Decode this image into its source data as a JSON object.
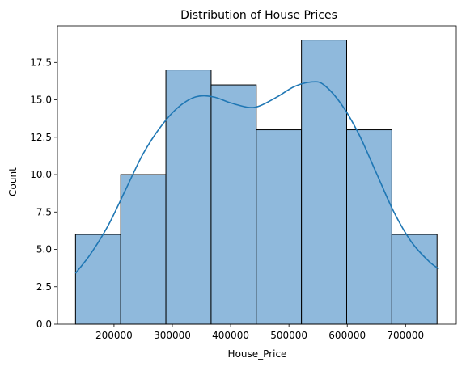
{
  "chart_data": {
    "type": "histogram",
    "title": "Distribution of House Prices",
    "xlabel": "House_Price",
    "ylabel": "Count",
    "xlim": [
      103000,
      787000
    ],
    "ylim": [
      0,
      19.95
    ],
    "x_ticks": [
      200000,
      300000,
      400000,
      500000,
      600000,
      700000
    ],
    "x_tick_labels": [
      "200000",
      "300000",
      "400000",
      "500000",
      "600000",
      "700000"
    ],
    "y_ticks": [
      0,
      2.5,
      5,
      7.5,
      10,
      12.5,
      15,
      17.5
    ],
    "y_tick_labels": [
      "0.0",
      "2.5",
      "5.0",
      "7.5",
      "10.0",
      "12.5",
      "15.0",
      "17.5"
    ],
    "bins": [
      {
        "x0": 134000,
        "x1": 211500,
        "count": 6
      },
      {
        "x0": 211500,
        "x1": 289000,
        "count": 10
      },
      {
        "x0": 289000,
        "x1": 366500,
        "count": 17
      },
      {
        "x0": 366500,
        "x1": 444000,
        "count": 16
      },
      {
        "x0": 444000,
        "x1": 521500,
        "count": 13
      },
      {
        "x0": 521500,
        "x1": 599000,
        "count": 19
      },
      {
        "x0": 599000,
        "x1": 676500,
        "count": 13
      },
      {
        "x0": 676500,
        "x1": 754000,
        "count": 6
      }
    ],
    "kde": {
      "x": [
        134000,
        160000,
        190000,
        220000,
        250000,
        280000,
        310000,
        340000,
        370000,
        400000,
        430000,
        450000,
        480000,
        510000,
        540000,
        560000,
        590000,
        620000,
        650000,
        680000,
        710000,
        740000,
        757000
      ],
      "y": [
        3.4,
        4.7,
        6.6,
        9.0,
        11.4,
        13.2,
        14.5,
        15.2,
        15.2,
        14.8,
        14.5,
        14.6,
        15.2,
        15.9,
        16.2,
        16.0,
        14.7,
        12.7,
        10.1,
        7.5,
        5.5,
        4.2,
        3.7
      ]
    },
    "grid": false,
    "legend": "none",
    "colors": {
      "bar_fill": "#8fb9dc",
      "bar_edge": "#000000",
      "kde_line": "#1f77b4"
    }
  }
}
